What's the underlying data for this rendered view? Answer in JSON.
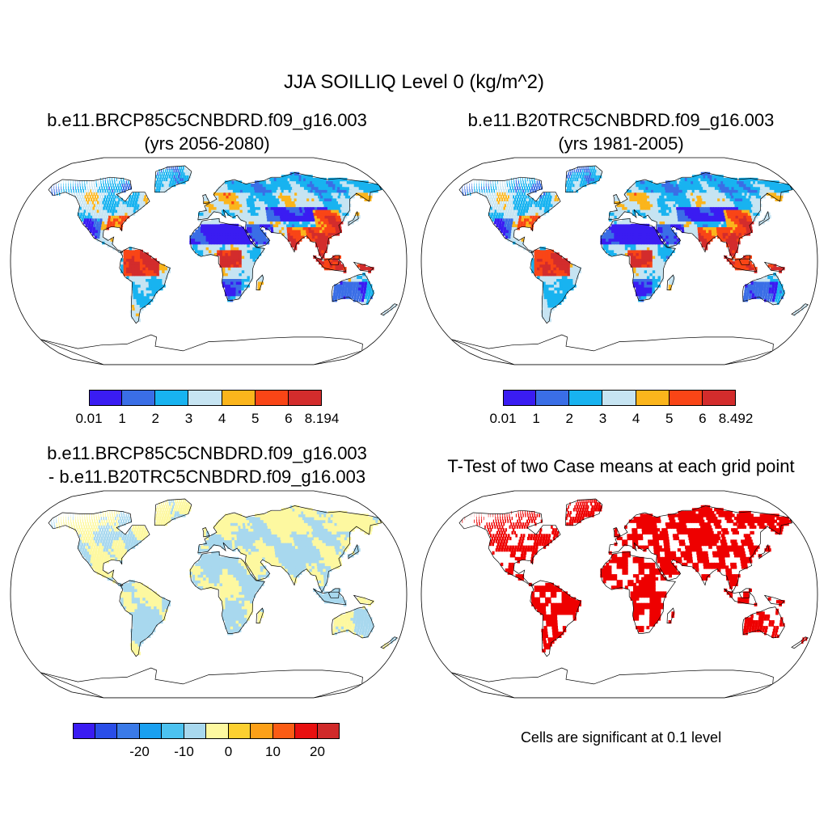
{
  "figure": {
    "title": "JJA SOILLIQ Level 0 (kg/m^2)"
  },
  "panels": [
    {
      "id": "p1",
      "title_line1": "b.e11.BRCP85C5CNBDRD.f09_g16.003",
      "title_line2": "(yrs 2056-2080)",
      "colorbar": {
        "colors": [
          "#3a1cf2",
          "#3a6ee6",
          "#18b3f0",
          "#c6e4f2",
          "#fbb51c",
          "#f94516",
          "#d32c2c"
        ],
        "labels": [
          "0.01",
          "1",
          "2",
          "3",
          "4",
          "5",
          "6",
          "8.194"
        ]
      }
    },
    {
      "id": "p2",
      "title_line1": "b.e11.B20TRC5CNBDRD.f09_g16.003",
      "title_line2": "(yrs 1981-2005)",
      "colorbar": {
        "colors": [
          "#3a1cf2",
          "#3a6ee6",
          "#18b3f0",
          "#c6e4f2",
          "#fbb51c",
          "#f94516",
          "#d32c2c"
        ],
        "labels": [
          "0.01",
          "1",
          "2",
          "3",
          "4",
          "5",
          "6",
          "8.492"
        ]
      }
    },
    {
      "id": "p3",
      "title_line1": "b.e11.BRCP85C5CNBDRD.f09_g16.003",
      "title_line2": "- b.e11.B20TRC5CNBDRD.f09_g16.003",
      "colorbar": {
        "colors": [
          "#3a1cf2",
          "#2a4ee8",
          "#3a7ae8",
          "#1aa0f0",
          "#4cc2f0",
          "#a8d8ee",
          "#fdf8a0",
          "#fcd030",
          "#fca018",
          "#fb5c14",
          "#e81010",
          "#d02a2a"
        ],
        "labels": [
          "-20",
          "-10",
          "0",
          "10",
          "20"
        ]
      }
    },
    {
      "id": "p4",
      "title": "T-Test of two Case means at each grid point",
      "note": "Cells are significant at 0.1 level",
      "fill_color": "#ee0000"
    }
  ],
  "colors": {
    "ocean": "#ffffff",
    "coast": "#000000",
    "diff_neg": "#a8d8ee",
    "diff_pos": "#fdf8a0"
  }
}
